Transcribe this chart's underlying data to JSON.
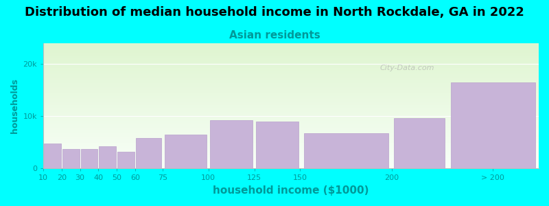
{
  "title": "Distribution of median household income in North Rockdale, GA in 2022",
  "subtitle": "Asian residents",
  "xlabel": "household income ($1000)",
  "ylabel": "households",
  "background_color": "#00FFFF",
  "bar_color": "#c8b4d8",
  "bar_edge_color": "#b8a0cc",
  "watermark_text": "City-Data.com",
  "categories": [
    "10",
    "20",
    "30",
    "40",
    "50",
    "60",
    "75",
    "100",
    "125",
    "150",
    "200",
    "> 200"
  ],
  "left_edges": [
    10,
    20,
    30,
    40,
    50,
    60,
    75,
    100,
    125,
    150,
    200,
    230
  ],
  "widths": [
    10,
    10,
    10,
    10,
    10,
    15,
    25,
    25,
    25,
    50,
    30,
    50
  ],
  "values": [
    4800,
    3700,
    3700,
    4200,
    3200,
    5800,
    6500,
    9300,
    9000,
    6700,
    9600,
    16500
  ],
  "yticks": [
    0,
    10000,
    20000
  ],
  "ytick_labels": [
    "0",
    "10k",
    "20k"
  ],
  "ylim": [
    0,
    24000
  ],
  "xlim": [
    10,
    280
  ],
  "xtick_positions": [
    10,
    20,
    30,
    40,
    50,
    60,
    75,
    100,
    125,
    150,
    200,
    255
  ],
  "xtick_labels": [
    "10",
    "20",
    "30",
    "40",
    "50",
    "60",
    "75",
    "100",
    "125",
    "150",
    "200",
    "> 200"
  ],
  "title_fontsize": 13,
  "subtitle_fontsize": 11,
  "xlabel_fontsize": 11,
  "ylabel_fontsize": 9,
  "tick_fontsize": 8,
  "gradient_top": "#dff5d0",
  "gradient_bottom": "#f8fff8"
}
